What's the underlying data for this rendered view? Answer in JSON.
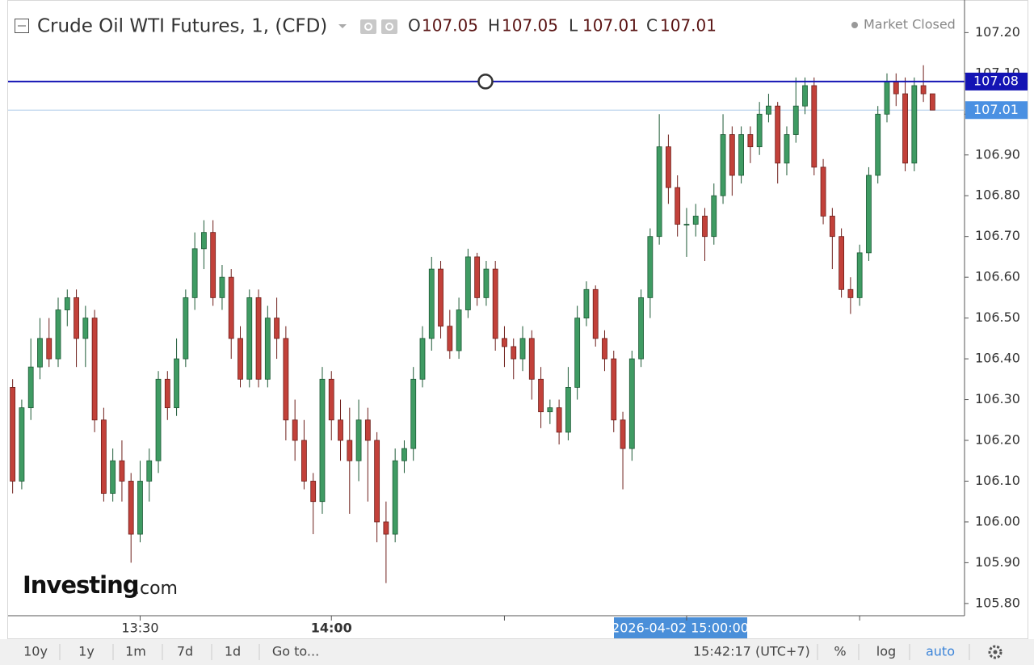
{
  "header": {
    "title": "Crude Oil WTI Futures, 1, (CFD)",
    "ohlc_letters": [
      "O",
      "H",
      "L",
      "C"
    ],
    "ohlc_values": [
      107.05,
      107.05,
      107.01,
      107.01
    ]
  },
  "status": "Market Closed",
  "logo": {
    "name": "Investing",
    "suffix": ".com"
  },
  "chart_data": {
    "type": "candlestick",
    "ohlc": [
      [
        106.33,
        106.35,
        106.07,
        106.1
      ],
      [
        106.1,
        106.3,
        106.08,
        106.28
      ],
      [
        106.28,
        106.45,
        106.25,
        106.38
      ],
      [
        106.38,
        106.5,
        106.35,
        106.45
      ],
      [
        106.45,
        106.5,
        106.38,
        106.4
      ],
      [
        106.4,
        106.55,
        106.38,
        106.52
      ],
      [
        106.52,
        106.57,
        106.48,
        106.55
      ],
      [
        106.55,
        106.57,
        106.38,
        106.45
      ],
      [
        106.45,
        106.53,
        106.38,
        106.5
      ],
      [
        106.5,
        106.52,
        106.22,
        106.25
      ],
      [
        106.25,
        106.28,
        106.05,
        106.07
      ],
      [
        106.07,
        106.18,
        106.05,
        106.15
      ],
      [
        106.15,
        106.2,
        106.05,
        106.1
      ],
      [
        106.1,
        106.12,
        105.9,
        105.97
      ],
      [
        105.97,
        106.15,
        105.95,
        106.1
      ],
      [
        106.1,
        106.18,
        106.05,
        106.15
      ],
      [
        106.15,
        106.37,
        106.12,
        106.35
      ],
      [
        106.35,
        106.37,
        106.25,
        106.28
      ],
      [
        106.28,
        106.45,
        106.26,
        106.4
      ],
      [
        106.4,
        106.57,
        106.38,
        106.55
      ],
      [
        106.55,
        106.71,
        106.52,
        106.67
      ],
      [
        106.67,
        106.74,
        106.62,
        106.71
      ],
      [
        106.71,
        106.74,
        106.53,
        106.55
      ],
      [
        106.55,
        106.63,
        106.52,
        106.6
      ],
      [
        106.6,
        106.62,
        106.4,
        106.45
      ],
      [
        106.45,
        106.48,
        106.33,
        106.35
      ],
      [
        106.35,
        106.57,
        106.33,
        106.55
      ],
      [
        106.55,
        106.57,
        106.33,
        106.35
      ],
      [
        106.35,
        106.53,
        106.33,
        106.5
      ],
      [
        106.5,
        106.55,
        106.4,
        106.45
      ],
      [
        106.45,
        106.48,
        106.2,
        106.25
      ],
      [
        106.25,
        106.3,
        106.15,
        106.2
      ],
      [
        106.2,
        106.25,
        106.08,
        106.1
      ],
      [
        106.1,
        106.12,
        105.97,
        106.05
      ],
      [
        106.05,
        106.38,
        106.02,
        106.35
      ],
      [
        106.35,
        106.37,
        106.2,
        106.25
      ],
      [
        106.25,
        106.3,
        106.15,
        106.2
      ],
      [
        106.2,
        106.28,
        106.02,
        106.15
      ],
      [
        106.15,
        106.3,
        106.1,
        106.25
      ],
      [
        106.25,
        106.28,
        106.05,
        106.2
      ],
      [
        106.2,
        106.22,
        105.95,
        106.0
      ],
      [
        106.0,
        106.05,
        105.85,
        105.97
      ],
      [
        105.97,
        106.18,
        105.95,
        106.15
      ],
      [
        106.15,
        106.2,
        106.12,
        106.18
      ],
      [
        106.18,
        106.38,
        106.15,
        106.35
      ],
      [
        106.35,
        106.48,
        106.33,
        106.45
      ],
      [
        106.45,
        106.65,
        106.42,
        106.62
      ],
      [
        106.62,
        106.64,
        106.45,
        106.48
      ],
      [
        106.48,
        106.52,
        106.4,
        106.42
      ],
      [
        106.42,
        106.55,
        106.4,
        106.52
      ],
      [
        106.52,
        106.67,
        106.5,
        106.65
      ],
      [
        106.65,
        106.66,
        106.53,
        106.55
      ],
      [
        106.55,
        106.64,
        106.53,
        106.62
      ],
      [
        106.62,
        106.64,
        106.42,
        106.45
      ],
      [
        106.45,
        106.48,
        106.38,
        106.43
      ],
      [
        106.43,
        106.45,
        106.35,
        106.4
      ],
      [
        106.4,
        106.48,
        106.37,
        106.45
      ],
      [
        106.45,
        106.47,
        106.3,
        106.35
      ],
      [
        106.35,
        106.38,
        106.23,
        106.27
      ],
      [
        106.27,
        106.3,
        106.24,
        106.28
      ],
      [
        106.28,
        106.3,
        106.19,
        106.22
      ],
      [
        106.22,
        106.38,
        106.2,
        106.33
      ],
      [
        106.33,
        106.53,
        106.3,
        106.5
      ],
      [
        106.5,
        106.59,
        106.48,
        106.57
      ],
      [
        106.57,
        106.58,
        106.43,
        106.45
      ],
      [
        106.45,
        106.47,
        106.37,
        106.4
      ],
      [
        106.4,
        106.42,
        106.22,
        106.25
      ],
      [
        106.25,
        106.27,
        106.08,
        106.18
      ],
      [
        106.18,
        106.42,
        106.15,
        106.4
      ],
      [
        106.4,
        106.57,
        106.38,
        106.55
      ],
      [
        106.55,
        106.72,
        106.5,
        106.7
      ],
      [
        106.7,
        107.0,
        106.68,
        106.92
      ],
      [
        106.92,
        106.95,
        106.78,
        106.82
      ],
      [
        106.82,
        106.85,
        106.7,
        106.73
      ],
      [
        106.73,
        106.77,
        106.65,
        106.73
      ],
      [
        106.73,
        106.78,
        106.7,
        106.75
      ],
      [
        106.75,
        106.77,
        106.64,
        106.7
      ],
      [
        106.7,
        106.83,
        106.68,
        106.8
      ],
      [
        106.8,
        107.0,
        106.78,
        106.95
      ],
      [
        106.95,
        106.97,
        106.8,
        106.85
      ],
      [
        106.85,
        106.97,
        106.83,
        106.95
      ],
      [
        106.95,
        106.97,
        106.88,
        106.92
      ],
      [
        106.92,
        107.03,
        106.9,
        107.0
      ],
      [
        107.0,
        107.05,
        106.98,
        107.02
      ],
      [
        107.02,
        107.03,
        106.83,
        106.88
      ],
      [
        106.88,
        106.97,
        106.85,
        106.95
      ],
      [
        106.95,
        107.09,
        106.93,
        107.02
      ],
      [
        107.02,
        107.09,
        107.0,
        107.07
      ],
      [
        107.07,
        107.09,
        106.85,
        106.87
      ],
      [
        106.87,
        106.89,
        106.73,
        106.75
      ],
      [
        106.75,
        106.77,
        106.62,
        106.7
      ],
      [
        106.7,
        106.72,
        106.55,
        106.57
      ],
      [
        106.57,
        106.6,
        106.51,
        106.55
      ],
      [
        106.55,
        106.68,
        106.53,
        106.66
      ],
      [
        106.66,
        106.87,
        106.64,
        106.85
      ],
      [
        106.85,
        107.02,
        106.83,
        107.0
      ],
      [
        107.0,
        107.1,
        106.98,
        107.08
      ],
      [
        107.08,
        107.1,
        107.02,
        107.05
      ],
      [
        107.05,
        107.09,
        106.86,
        106.88
      ],
      [
        106.88,
        107.09,
        106.86,
        107.07
      ],
      [
        107.07,
        107.12,
        107.03,
        107.05
      ],
      [
        107.05,
        107.05,
        107.01,
        107.01
      ]
    ],
    "up_color": "#3f9b63",
    "down_color": "#c2413a",
    "ylim": [
      105.77,
      107.28
    ],
    "yticks": [
      {
        "value": 107.2,
        "label": "107.20"
      },
      {
        "value": 107.1,
        "label": "107.10"
      },
      {
        "value": 107.0,
        "label": "107.00"
      },
      {
        "value": 106.9,
        "label": "106.90"
      },
      {
        "value": 106.8,
        "label": "106.80"
      },
      {
        "value": 106.7,
        "label": "106.70"
      },
      {
        "value": 106.6,
        "label": "106.60"
      },
      {
        "value": 106.5,
        "label": "106.50"
      },
      {
        "value": 106.4,
        "label": "106.40"
      },
      {
        "value": 106.3,
        "label": "106.30"
      },
      {
        "value": 106.2,
        "label": "106.20"
      },
      {
        "value": 106.1,
        "label": "106.10"
      },
      {
        "value": 106.0,
        "label": "106.00"
      },
      {
        "value": 105.9,
        "label": "105.90"
      },
      {
        "value": 105.8,
        "label": "105.80"
      }
    ],
    "xticks": [
      {
        "value": 14,
        "label": "13:30"
      },
      {
        "value": 35,
        "label": "14:00"
      },
      {
        "value": 54,
        "label": null
      },
      {
        "value": 74,
        "label": null
      },
      {
        "value": 93,
        "label": null
      }
    ],
    "crosshair_label": "2026-04-02 15:00:00",
    "horizontal_line": {
      "value": 107.08,
      "color": "#1414b4"
    },
    "last_price": {
      "value": 107.01,
      "color": "#4a90e2"
    },
    "grid": false
  },
  "toolbar": {
    "ranges": [
      "10y",
      "1y",
      "1m",
      "7d",
      "1d",
      "Go to..."
    ],
    "time": "15:42:17 (UTC+7)",
    "options": [
      "%",
      "log",
      "auto"
    ]
  }
}
